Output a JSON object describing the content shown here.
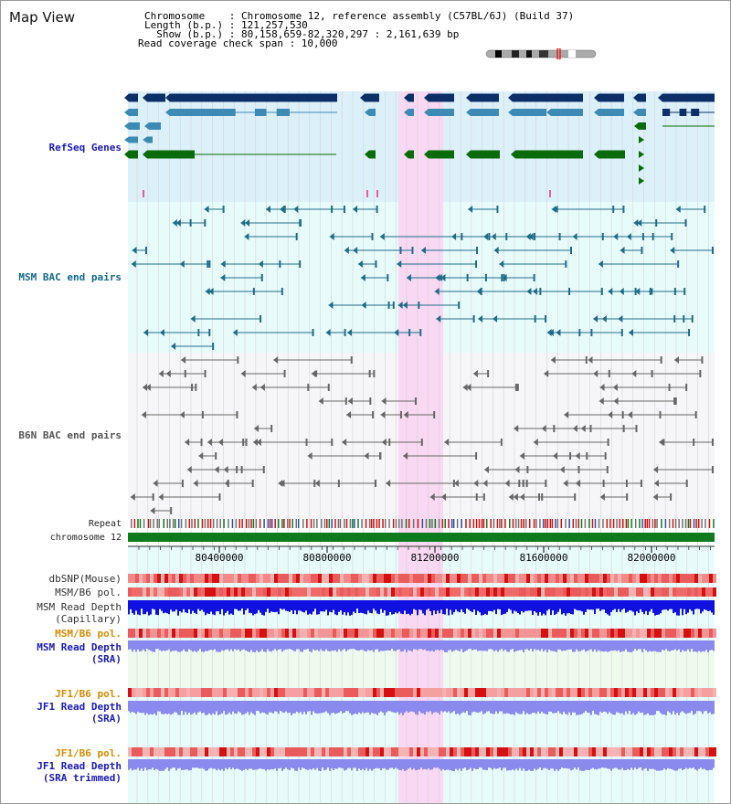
{
  "header": {
    "title": "Map View",
    "chromosome_line": "Chromosome    : Chromosome 12, reference assembly (C57BL/6J) (Build 37)",
    "length_line": "Length (b.p.) : 121,257,530",
    "show_line": "  Show (b.p.) : 80,158,659-82,320,297 : 2,161,639 bp",
    "coverage_line": "Read coverage check span : 10,000"
  },
  "tracks": {
    "refseq": "RefSeq Genes",
    "msm_bac": "MSM BAC end pairs",
    "b6n_bac": "B6N BAC end pairs",
    "repeat": "Repeat",
    "chromosome": "chromosome 12",
    "dbsnp": "dbSNP(Mouse)",
    "msm_pol1": "MSM/B6 pol.",
    "msm_depth_cap_1": "MSM Read Depth",
    "msm_depth_cap_2": "(Capillary)",
    "msm_pol2": "MSM/B6 pol.",
    "msm_depth_sra_1": "MSM Read Depth",
    "msm_depth_sra_2": "(SRA)",
    "jf1_pol1": "JF1/B6 pol.",
    "jf1_depth_1": "JF1 Read Depth",
    "jf1_depth_2": "(SRA)",
    "jf1_pol2": "JF1/B6 pol.",
    "jf1_trim_1": "JF1 Read Depth",
    "jf1_trim_2": "(SRA trimmed)"
  },
  "axis": {
    "ticks": [
      "80400000",
      "80800000",
      "81200000",
      "81600000",
      "82000000"
    ]
  },
  "colors": {
    "refseq_bg": "#dcf0fa",
    "msm_bac_bg": "#e8fbfb",
    "b6n_bac_bg": "#f6f6f8",
    "highlight": "#f8d8f2",
    "gene_dark": "#0b2f66",
    "gene_mid": "#3d8ab5",
    "gene_green": "#0a6b0a",
    "chromosome": "#0e7a1e",
    "msm_bac_line": "#1f6c88",
    "b6n_bac_line": "#666666",
    "depth_capillary": "#1010e0",
    "depth_sra": "#8a8aee"
  }
}
